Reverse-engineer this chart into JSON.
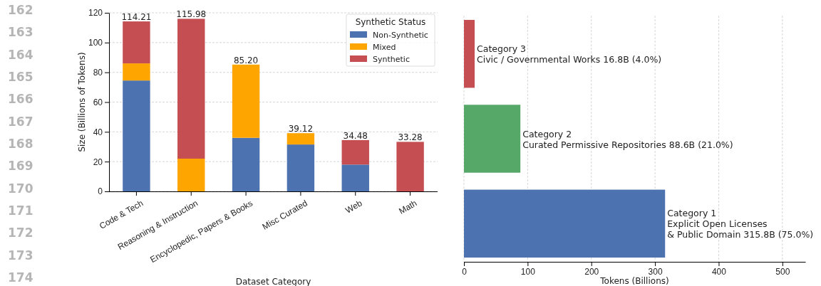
{
  "chart_data": [
    {
      "type": "bar",
      "stacked": true,
      "xlabel": "Dataset Category",
      "ylabel": "Size (Billions of Tokens)",
      "legend_title": "Synthetic Status",
      "legend": "top right",
      "grid": "y",
      "categories": [
        "Code & Tech",
        "Reasoning & Instruction",
        "Encyclopedic, Papers & Books",
        "Misc Curated",
        "Web",
        "Math"
      ],
      "series": [
        {
          "name": "Non-Synthetic",
          "color": "#4c72b0",
          "values": [
            74.5,
            0,
            36,
            31.5,
            18,
            0
          ]
        },
        {
          "name": "Mixed",
          "color": "#ffa500",
          "values": [
            11.5,
            22,
            49.2,
            7.62,
            0,
            0
          ]
        },
        {
          "name": "Synthetic",
          "color": "#c44e52",
          "values": [
            28.21,
            93.98,
            0,
            0,
            16.48,
            33.28
          ]
        }
      ],
      "totals": [
        "114.21",
        "115.98",
        "85.20",
        "39.12",
        "34.48",
        "33.28"
      ],
      "ylim": [
        0,
        120
      ],
      "yticks": [
        0,
        20,
        40,
        60,
        80,
        100,
        120
      ],
      "annotations": [
        "162",
        "163",
        "164",
        "165",
        "166",
        "167",
        "168",
        "169",
        "170",
        "171",
        "172",
        "173",
        "174"
      ]
    },
    {
      "type": "bar",
      "orientation": "horizontal",
      "xlabel": "Tokens (Billions)",
      "grid": "x",
      "tick_labels": "x",
      "categories": [
        null,
        null,
        null
      ],
      "values": [
        16.8,
        88.6,
        315.8
      ],
      "colors": [
        "#c44e52",
        "#55a868",
        "#4c72b0"
      ],
      "annotations": [
        {
          "text": "Category 3\nCivic / Governmental Works 16.8B (4.0%)",
          "x": 16.8
        },
        {
          "text": "Category 2\nCurated Permissive Repositories 88.6B (21.0%)",
          "x": 88.6
        },
        {
          "text": "Category 1\nExplicit Open Licenses\n& Public Domain 315.8B (75.0%)",
          "x": 315.8
        }
      ],
      "xlim": [
        0,
        536
      ],
      "xticks": [
        0,
        100,
        200,
        300,
        400,
        500
      ]
    }
  ]
}
